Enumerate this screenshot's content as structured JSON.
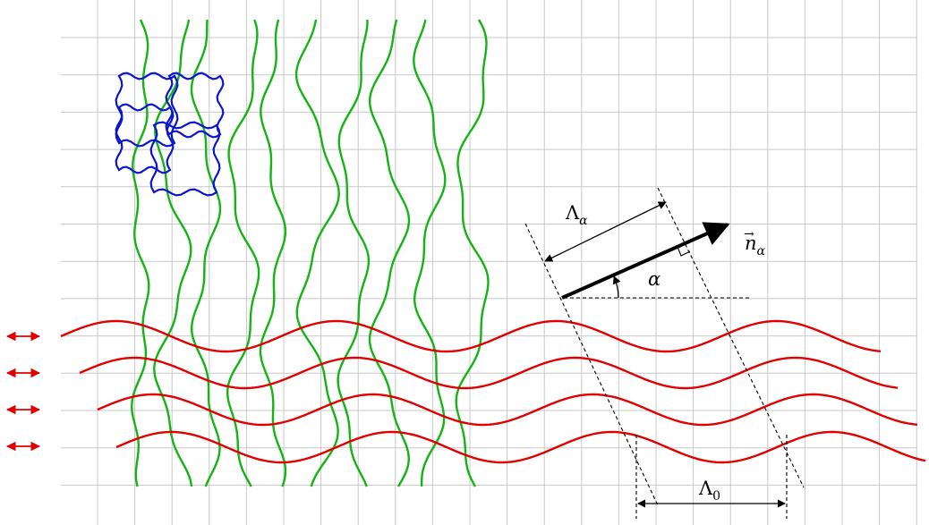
{
  "diagram": {
    "labels": {
      "lambda_alpha": "Λ",
      "lambda_alpha_sub": "α",
      "n_alpha": "n",
      "n_alpha_sub": "α",
      "alpha": "α",
      "lambda_0": "Λ",
      "lambda_0_sub": "0"
    },
    "colors": {
      "grid": "#c8c8c8",
      "red_wave": "#e00000",
      "green_wave": "#14b414",
      "blue_cell": "#0a14d2",
      "ink": "#000000"
    },
    "red_wave_count": 4,
    "green_wave_count": 10,
    "blue_cell_count": 4
  }
}
